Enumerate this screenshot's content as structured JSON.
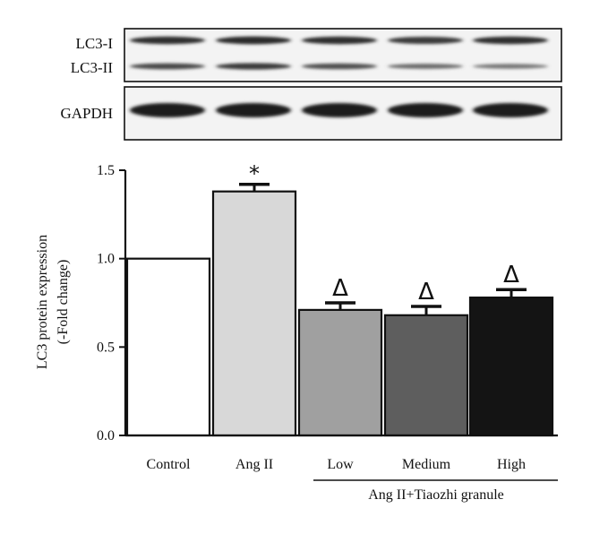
{
  "blot": {
    "panels": [
      {
        "rows": [
          {
            "label": "LC3-I",
            "intensity": [
              0.85,
              0.9,
              0.85,
              0.75,
              0.85
            ]
          },
          {
            "label": "LC3-II",
            "intensity": [
              0.6,
              0.75,
              0.55,
              0.3,
              0.2
            ]
          }
        ]
      },
      {
        "rows": [
          {
            "label": "GAPDH",
            "intensity": [
              1.0,
              1.0,
              1.0,
              1.0,
              1.0
            ]
          }
        ]
      }
    ]
  },
  "chart_data": {
    "type": "bar",
    "title": "",
    "xlabel": "",
    "ylabel": [
      "LC3 protein expression",
      "(-Fold change)"
    ],
    "ylim": [
      0,
      1.5
    ],
    "yticks": [
      "0.0",
      "0.5",
      "1.0",
      "1.5"
    ],
    "categories": [
      "Control",
      "Ang II",
      "Low",
      "Medium",
      "High"
    ],
    "values": [
      1.0,
      1.38,
      0.71,
      0.68,
      0.78
    ],
    "errors": [
      0,
      0.04,
      0.04,
      0.05,
      0.045
    ],
    "colors": [
      "#ffffff",
      "#d8d8d8",
      "#a0a0a0",
      "#5e5e5e",
      "#141414"
    ],
    "significance": [
      "",
      "*",
      "Δ",
      "Δ",
      "Δ"
    ],
    "group_label": "Ang II+Tiaozhi granule"
  }
}
